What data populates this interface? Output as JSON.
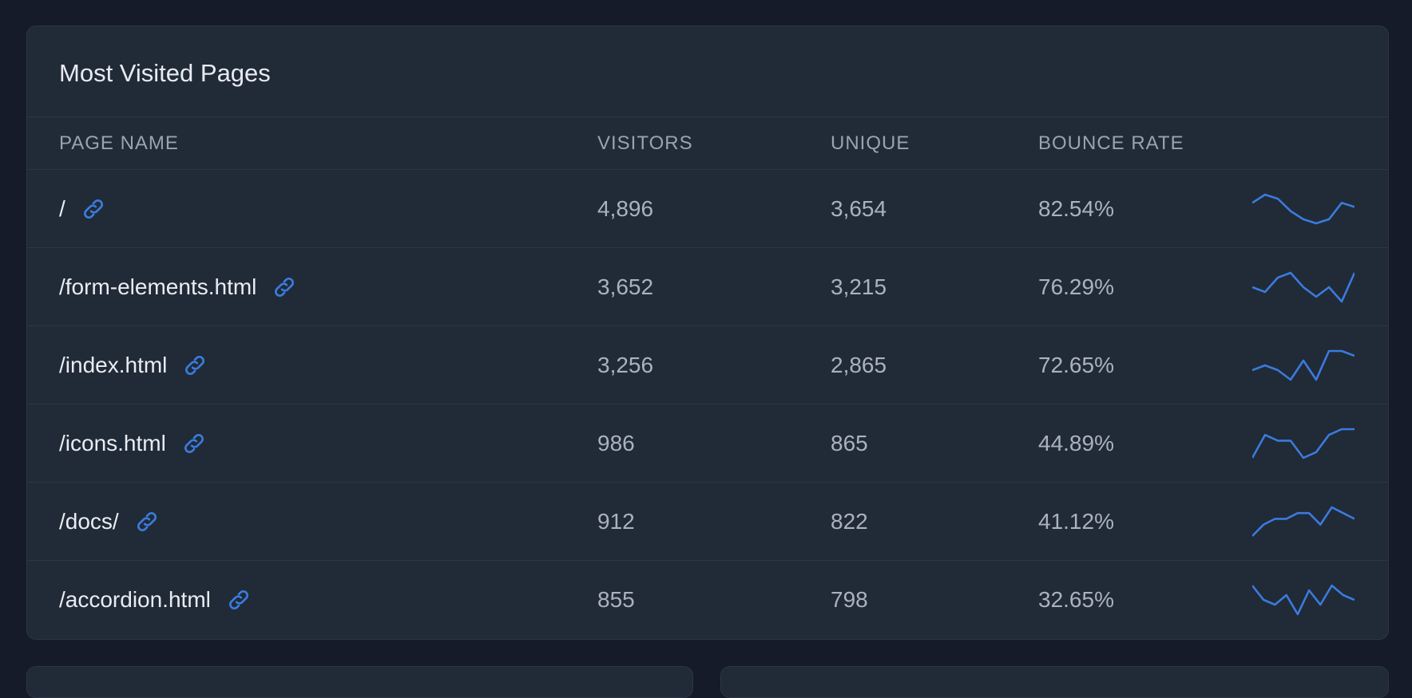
{
  "card": {
    "title": "Most Visited Pages",
    "columns": {
      "page_name": "Page Name",
      "visitors": "Visitors",
      "unique": "Unique",
      "bounce_rate": "Bounce Rate"
    },
    "rows": [
      {
        "page": "/",
        "visitors": "4,896",
        "unique": "3,654",
        "bounce": "82.54%",
        "trend": [
          6,
          8,
          7,
          4,
          2,
          1,
          2,
          6,
          5
        ]
      },
      {
        "page": "/form-elements.html",
        "visitors": "3,652",
        "unique": "3,215",
        "bounce": "76.29%",
        "trend": [
          4,
          3,
          6,
          7,
          4,
          2,
          4,
          1,
          7
        ]
      },
      {
        "page": "/index.html",
        "visitors": "3,256",
        "unique": "2,865",
        "bounce": "72.65%",
        "trend": [
          3,
          4,
          3,
          1,
          5,
          1,
          7,
          7,
          6
        ]
      },
      {
        "page": "/icons.html",
        "visitors": "986",
        "unique": "865",
        "bounce": "44.89%",
        "trend": [
          1,
          5,
          4,
          4,
          1,
          2,
          5,
          6,
          6
        ]
      },
      {
        "page": "/docs/",
        "visitors": "912",
        "unique": "822",
        "bounce": "41.12%",
        "trend": [
          1,
          3,
          4,
          4,
          5,
          5,
          3,
          6,
          5,
          4
        ]
      },
      {
        "page": "/accordion.html",
        "visitors": "855",
        "unique": "798",
        "bounce": "32.65%",
        "trend": [
          7,
          4,
          3,
          5,
          1,
          6,
          3,
          7,
          5,
          4
        ]
      }
    ]
  },
  "colors": {
    "accent": "#3a7bdd",
    "background": "#151b28",
    "card": "#212a37"
  },
  "icons": {
    "link": "link-icon"
  }
}
